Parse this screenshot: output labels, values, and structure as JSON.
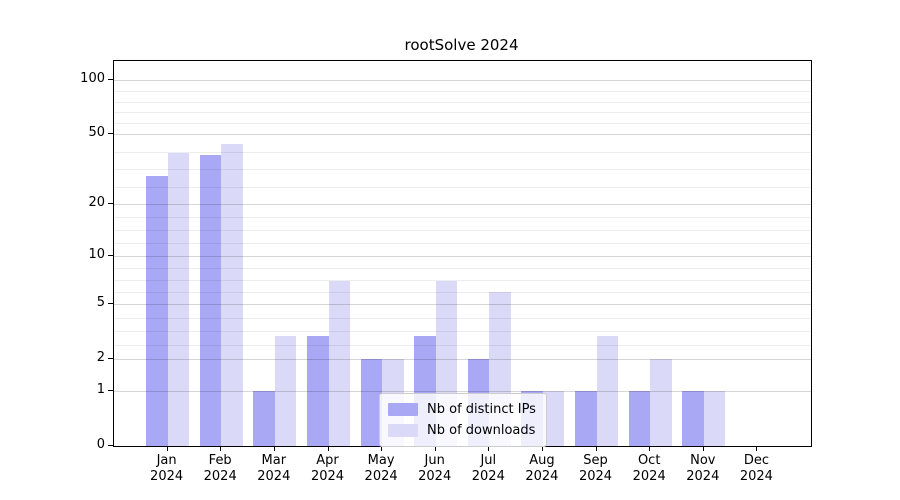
{
  "chart_data": {
    "type": "bar",
    "title": "rootSolve 2024",
    "months": [
      "Jan",
      "Feb",
      "Mar",
      "Apr",
      "May",
      "Jun",
      "Jul",
      "Aug",
      "Sep",
      "Oct",
      "Nov",
      "Dec"
    ],
    "year": "2024",
    "series": [
      {
        "name": "Nb of distinct IPs",
        "color": "#a8a8f5",
        "values": [
          29,
          38,
          1,
          3,
          2,
          3,
          2,
          1,
          1,
          1,
          1,
          0
        ]
      },
      {
        "name": "Nb of downloads",
        "color": "#dadaf8",
        "values": [
          39,
          44,
          3,
          7,
          2,
          7,
          6,
          1,
          3,
          2,
          1,
          0
        ]
      }
    ],
    "y_ticks": [
      0,
      1,
      2,
      5,
      10,
      20,
      50,
      100
    ],
    "y_tick_labels": [
      "0",
      "1",
      "2",
      "5",
      "10",
      "20",
      "50",
      "100"
    ],
    "y_scale": "log10(1+v)",
    "ylim": [
      0,
      127
    ],
    "grid": true,
    "minor_grid": true,
    "legend_position": "lower center",
    "xlabel": "",
    "ylabel": ""
  },
  "colors": {
    "background": "#ffffff",
    "major_grid": "#d9d9d9",
    "minor_grid": "#ededed",
    "axis": "#000000",
    "legend_border": "#cccccc"
  }
}
